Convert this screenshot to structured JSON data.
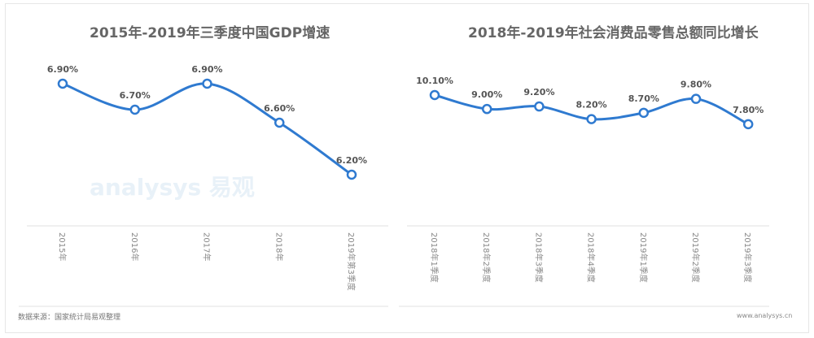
{
  "chart_data": [
    {
      "type": "line",
      "title": "2015年-2019年三季度中国GDP增速",
      "categories": [
        "2015年",
        "2016年",
        "2017年",
        "2018年",
        "2019年第3季度"
      ],
      "values": [
        6.9,
        6.7,
        6.9,
        6.6,
        6.2
      ],
      "data_labels": [
        "6.90%",
        "6.70%",
        "6.90%",
        "6.60%",
        "6.20%"
      ],
      "color": "#2f7ad0"
    },
    {
      "type": "line",
      "title": "2018年-2019年社会消费品零售总额同比增长",
      "categories": [
        "2018年1季度",
        "2018年2季度",
        "2018年3季度",
        "2018年4季度",
        "2019年1季度",
        "2019年2季度",
        "2019年3季度"
      ],
      "values": [
        10.1,
        9.0,
        9.2,
        8.2,
        8.7,
        9.8,
        7.8
      ],
      "data_labels": [
        "10.10%",
        "9.00%",
        "9.20%",
        "8.20%",
        "8.70%",
        "9.80%",
        "7.80%"
      ],
      "color": "#2f7ad0"
    }
  ],
  "footer": {
    "source": "数据来源：国家统计局易观整理",
    "site": "www.analysys.cn"
  },
  "watermark": "analysys 易观"
}
